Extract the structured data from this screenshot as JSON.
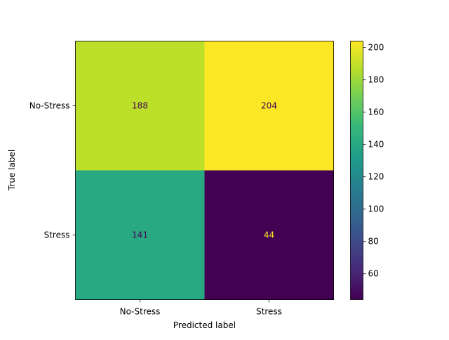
{
  "chart_data": {
    "type": "heatmap",
    "title": "",
    "xlabel": "Predicted label",
    "ylabel": "True label",
    "x_categories": [
      "No-Stress",
      "Stress"
    ],
    "y_categories": [
      "No-Stress",
      "Stress"
    ],
    "values": [
      [
        188,
        204
      ],
      [
        141,
        44
      ]
    ],
    "colormap": "viridis",
    "colorbar": {
      "range": [
        44,
        204
      ],
      "ticks": [
        60,
        80,
        100,
        120,
        140,
        160,
        180,
        200
      ],
      "tick_labels": [
        "60",
        "80",
        "100",
        "120",
        "140",
        "160",
        "180",
        "200"
      ]
    },
    "grid": false
  }
}
